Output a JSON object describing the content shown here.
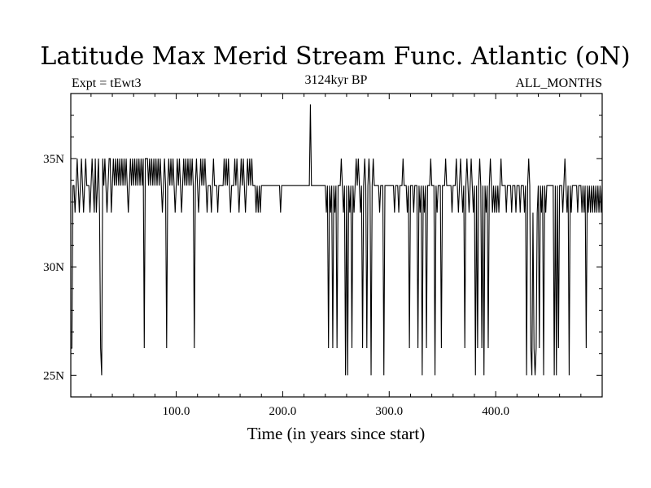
{
  "chart_data": {
    "type": "line",
    "title": "Latitude Max Merid Stream Func. Atlantic (oN)",
    "subtitle_left": "Expt = tEwt3",
    "subtitle_center": "3124kyr BP",
    "subtitle_right": "ALL_MONTHS",
    "xlabel": "Time (in years since start)",
    "ylabel": "",
    "xlim": [
      1,
      500
    ],
    "ylim": [
      24,
      38
    ],
    "x_ticks": [
      {
        "value": 100,
        "label": "100.0"
      },
      {
        "value": 200,
        "label": "200.0"
      },
      {
        "value": 300,
        "label": "300.0"
      },
      {
        "value": 400,
        "label": "400.0"
      }
    ],
    "y_ticks": [
      {
        "value": 25,
        "label": "25N"
      },
      {
        "value": 30,
        "label": "30N"
      },
      {
        "value": 35,
        "label": "35N"
      }
    ],
    "baseline_value": 33.75,
    "segments": [
      {
        "from": 1,
        "to": 2,
        "value": 26.25
      },
      {
        "from": 3,
        "to": 4,
        "value": 33.75
      }
    ],
    "excursions": [
      [
        5,
        32.5
      ],
      [
        7,
        35
      ],
      [
        9,
        32.5
      ],
      [
        11,
        35
      ],
      [
        13,
        32.5
      ],
      [
        15,
        35
      ],
      [
        19,
        32.5
      ],
      [
        21,
        35
      ],
      [
        23,
        32.5
      ],
      [
        24,
        35
      ],
      [
        25,
        32.5
      ],
      [
        27,
        35
      ],
      [
        28,
        32.5
      ],
      [
        29,
        26.25
      ],
      [
        30,
        25
      ],
      [
        31,
        35
      ],
      [
        33,
        35
      ],
      [
        35,
        32.5
      ],
      [
        37,
        35
      ],
      [
        38,
        35
      ],
      [
        39,
        32.5
      ],
      [
        41,
        35
      ],
      [
        43,
        35
      ],
      [
        45,
        35
      ],
      [
        47,
        35
      ],
      [
        49,
        35
      ],
      [
        51,
        35
      ],
      [
        53,
        35
      ],
      [
        55,
        32.5
      ],
      [
        57,
        35
      ],
      [
        59,
        35
      ],
      [
        61,
        35
      ],
      [
        63,
        35
      ],
      [
        65,
        35
      ],
      [
        67,
        35
      ],
      [
        69,
        35
      ],
      [
        70,
        26.25
      ],
      [
        71,
        35
      ],
      [
        72,
        35
      ],
      [
        73,
        35
      ],
      [
        75,
        35
      ],
      [
        77,
        35
      ],
      [
        79,
        35
      ],
      [
        81,
        35
      ],
      [
        83,
        35
      ],
      [
        85,
        35
      ],
      [
        87,
        32.5
      ],
      [
        89,
        35
      ],
      [
        91,
        26.25
      ],
      [
        93,
        35
      ],
      [
        95,
        35
      ],
      [
        97,
        35
      ],
      [
        99,
        32.5
      ],
      [
        101,
        35
      ],
      [
        103,
        35
      ],
      [
        105,
        32.5
      ],
      [
        107,
        35
      ],
      [
        109,
        35
      ],
      [
        111,
        35
      ],
      [
        113,
        35
      ],
      [
        115,
        35
      ],
      [
        117,
        26.25
      ],
      [
        119,
        35
      ],
      [
        121,
        32.5
      ],
      [
        123,
        35
      ],
      [
        125,
        35
      ],
      [
        127,
        35
      ],
      [
        129,
        32.5
      ],
      [
        133,
        32.5
      ],
      [
        135,
        35
      ],
      [
        139,
        32.5
      ],
      [
        145,
        35
      ],
      [
        147,
        35
      ],
      [
        149,
        35
      ],
      [
        151,
        32.5
      ],
      [
        155,
        35
      ],
      [
        157,
        35
      ],
      [
        159,
        32.5
      ],
      [
        161,
        35
      ],
      [
        163,
        35
      ],
      [
        165,
        32.5
      ],
      [
        167,
        35
      ],
      [
        169,
        35
      ],
      [
        171,
        35
      ],
      [
        175,
        32.5
      ],
      [
        177,
        32.5
      ],
      [
        179,
        32.5
      ],
      [
        198,
        32.5
      ],
      [
        226,
        37.5
      ],
      [
        241,
        32.5
      ],
      [
        243,
        26.25
      ],
      [
        245,
        32.5
      ],
      [
        247,
        26.25
      ],
      [
        249,
        32.5
      ],
      [
        251,
        26.25
      ],
      [
        255,
        35
      ],
      [
        257,
        32.5
      ],
      [
        259,
        25
      ],
      [
        261,
        25
      ],
      [
        263,
        32.5
      ],
      [
        265,
        26.25
      ],
      [
        267,
        32.5
      ],
      [
        269,
        35
      ],
      [
        271,
        35
      ],
      [
        273,
        32.5
      ],
      [
        275,
        26.25
      ],
      [
        277,
        35
      ],
      [
        279,
        26.25
      ],
      [
        281,
        35
      ],
      [
        283,
        25
      ],
      [
        285,
        35
      ],
      [
        291,
        32.5
      ],
      [
        295,
        25
      ],
      [
        305,
        32.5
      ],
      [
        309,
        32.5
      ],
      [
        313,
        35
      ],
      [
        317,
        32.5
      ],
      [
        319,
        26.25
      ],
      [
        323,
        32.5
      ],
      [
        327,
        26.25
      ],
      [
        329,
        32.5
      ],
      [
        331,
        25
      ],
      [
        333,
        32.5
      ],
      [
        335,
        26.25
      ],
      [
        339,
        35
      ],
      [
        343,
        25
      ],
      [
        345,
        32.5
      ],
      [
        349,
        26.25
      ],
      [
        353,
        35
      ],
      [
        359,
        32.5
      ],
      [
        363,
        35
      ],
      [
        365,
        32.5
      ],
      [
        367,
        35
      ],
      [
        369,
        32.5
      ],
      [
        371,
        26.25
      ],
      [
        373,
        35
      ],
      [
        375,
        32.5
      ],
      [
        377,
        35
      ],
      [
        379,
        32.5
      ],
      [
        381,
        25
      ],
      [
        383,
        26.25
      ],
      [
        385,
        35
      ],
      [
        387,
        26.25
      ],
      [
        389,
        25
      ],
      [
        391,
        32.5
      ],
      [
        393,
        26.25
      ],
      [
        395,
        35
      ],
      [
        397,
        32.5
      ],
      [
        399,
        32.5
      ],
      [
        401,
        32.5
      ],
      [
        403,
        32.5
      ],
      [
        405,
        35
      ],
      [
        410,
        32.5
      ],
      [
        415,
        32.5
      ],
      [
        419,
        32.5
      ],
      [
        423,
        32.5
      ],
      [
        427,
        32.5
      ],
      [
        429,
        25
      ],
      [
        431,
        35
      ],
      [
        433,
        26.25
      ],
      [
        434,
        25
      ],
      [
        435,
        32.5
      ],
      [
        436,
        26.25
      ],
      [
        437,
        25
      ],
      [
        438,
        26.25
      ],
      [
        439,
        32.5
      ],
      [
        441,
        26.25
      ],
      [
        443,
        32.5
      ],
      [
        445,
        25
      ],
      [
        447,
        32.5
      ],
      [
        455,
        25
      ],
      [
        457,
        25
      ],
      [
        459,
        26.25
      ],
      [
        463,
        32.5
      ],
      [
        465,
        35
      ],
      [
        467,
        32.5
      ],
      [
        469,
        25
      ],
      [
        471,
        32.5
      ],
      [
        477,
        32.5
      ],
      [
        481,
        32.5
      ],
      [
        483,
        32.5
      ],
      [
        485,
        26.25
      ],
      [
        487,
        32.5
      ],
      [
        489,
        32.5
      ],
      [
        491,
        32.5
      ],
      [
        493,
        32.5
      ],
      [
        495,
        32.5
      ],
      [
        497,
        32.5
      ],
      [
        499,
        32.5
      ]
    ]
  }
}
